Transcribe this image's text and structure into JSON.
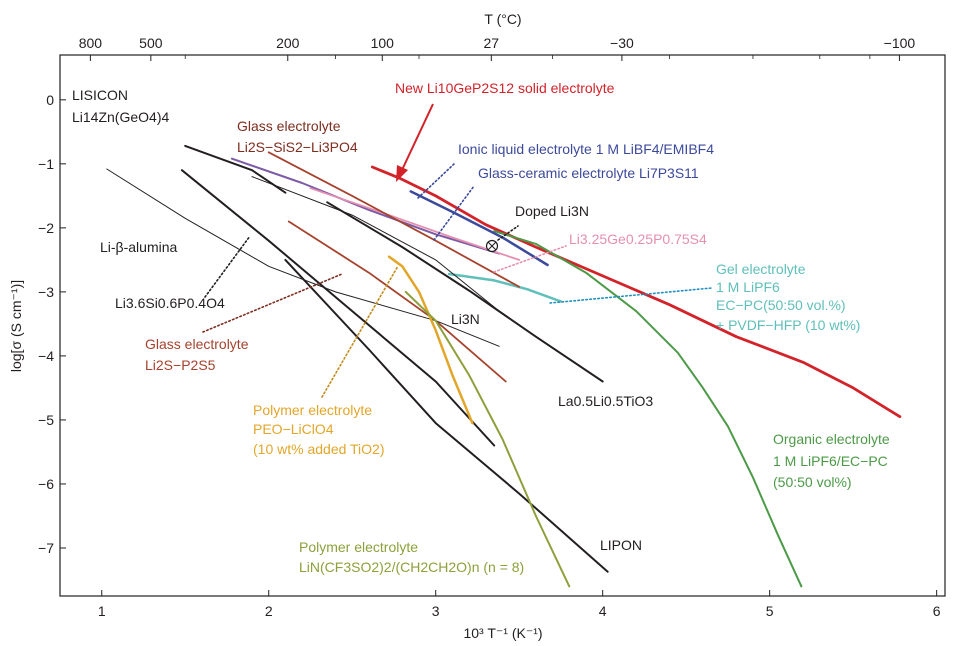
{
  "chart_data": {
    "type": "line",
    "xlabel": "10³ T⁻¹ (K⁻¹)",
    "ylabel": "log[σ (S cm⁻¹)]",
    "top_axis_label": "T (°C)",
    "xlim": [
      0.75,
      6.05
    ],
    "ylim": [
      -7.75,
      0.7
    ],
    "x_ticks": [
      1,
      2,
      3,
      4,
      5,
      6
    ],
    "y_ticks": [
      0,
      -1,
      -2,
      -3,
      -4,
      -5,
      -6,
      -7
    ],
    "y_tick_labels": [
      "0",
      "−1",
      "−2",
      "−3",
      "−4",
      "−5",
      "−6",
      "−7"
    ],
    "top_ticks": [
      {
        "label": "800",
        "x": 0.932
      },
      {
        "label": "500",
        "x": 1.294
      },
      {
        "label": "200",
        "x": 2.114
      },
      {
        "label": "100",
        "x": 2.68
      },
      {
        "label": "27",
        "x": 3.333
      },
      {
        "label": "−30",
        "x": 4.115
      },
      {
        "label": "−100",
        "x": 5.777
      }
    ],
    "top_minor_ticks": [
      1.5,
      2.4,
      2.9,
      3.7,
      4.4,
      4.9,
      5.3,
      5.6
    ],
    "grid": false,
    "series": [
      {
        "name": "New Li10GeP2S12 solid electrolyte",
        "color": "#d2232a",
        "width": 2.8,
        "x": [
          2.62,
          2.78,
          3.0,
          3.3,
          3.6,
          4.0,
          4.4,
          4.8,
          5.2,
          5.5,
          5.78
        ],
        "y": [
          -1.05,
          -1.22,
          -1.5,
          -1.95,
          -2.3,
          -2.75,
          -3.2,
          -3.7,
          -4.1,
          -4.5,
          -4.95
        ]
      },
      {
        "name": "Organic electrolyte 1 M LiPF6/EC−PC (50:50 vol%)",
        "color": "#4c9a47",
        "width": 2,
        "x": [
          3.35,
          3.6,
          3.9,
          4.2,
          4.45,
          4.6,
          4.75,
          4.9,
          5.05,
          5.19
        ],
        "y": [
          -2.05,
          -2.25,
          -2.7,
          -3.3,
          -3.95,
          -4.5,
          -5.1,
          -5.9,
          -6.8,
          -7.6
        ]
      },
      {
        "name": "Gel electrolyte 1 M LiPF6 EC−PC(50:50 vol.%) + PVDF−HFP (10 wt%)",
        "color": "#5fbfb9",
        "width": 2.5,
        "x": [
          3.08,
          3.35,
          3.55,
          3.75
        ],
        "y": [
          -2.72,
          -2.82,
          -2.96,
          -3.15
        ]
      },
      {
        "name": "Ionic liquid electrolyte 1 M LiBF4/EMIBF4",
        "color": "#3c4a9b",
        "width": 2.5,
        "x": [
          2.85,
          3.1,
          3.4,
          3.67
        ],
        "y": [
          -1.43,
          -1.75,
          -2.15,
          -2.58
        ]
      },
      {
        "name": "Glass-ceramic electrolyte Li7P3S11",
        "color": "#7b5aa6",
        "width": 2,
        "x": [
          1.78,
          2.2,
          2.6,
          3.0,
          3.38
        ],
        "y": [
          -0.92,
          -1.3,
          -1.72,
          -2.1,
          -2.4
        ]
      },
      {
        "name": "Li3.25Ge0.25P0.75S4",
        "color": "#e58fb0",
        "width": 1.8,
        "x": [
          2.25,
          2.7,
          3.1,
          3.5
        ],
        "y": [
          -1.38,
          -1.78,
          -2.15,
          -2.5
        ]
      },
      {
        "name": "Glass electrolyte Li2S−SiS2−Li3PO4",
        "color": "#a6432e",
        "width": 1.8,
        "x": [
          2.0,
          2.5,
          3.0,
          3.5
        ],
        "y": [
          -0.82,
          -1.5,
          -2.2,
          -2.92
        ]
      },
      {
        "name": "Glass electrolyte Li2S−P2S5",
        "color": "#a6432e",
        "width": 1.8,
        "x": [
          2.12,
          2.6,
          3.0,
          3.42
        ],
        "y": [
          -1.9,
          -2.7,
          -3.45,
          -4.4
        ]
      },
      {
        "name": "Li3N",
        "color": "#231f20",
        "width": 2,
        "x": [
          1.5,
          1.9,
          2.1
        ],
        "y": [
          -0.72,
          -1.1,
          -1.45
        ]
      },
      {
        "name": "Li3N",
        "color": "#231f20",
        "width": 2,
        "x": [
          1.48,
          2.0,
          2.5,
          3.0,
          3.35
        ],
        "y": [
          -1.1,
          -2.2,
          -3.3,
          -4.4,
          -5.4
        ]
      },
      {
        "name": "Li3N",
        "color": "#231f20",
        "width": 1,
        "x": [
          1.9,
          2.5,
          3.0,
          3.38
        ],
        "y": [
          -1.2,
          -1.8,
          -2.5,
          -3.3
        ]
      },
      {
        "name": "La0.5Li0.5TiO3",
        "color": "#231f20",
        "width": 2,
        "x": [
          2.35,
          2.8,
          3.2,
          3.6,
          4.0
        ],
        "y": [
          -1.6,
          -2.3,
          -2.98,
          -3.7,
          -4.4
        ]
      },
      {
        "name": "LIPON",
        "color": "#231f20",
        "width": 2,
        "x": [
          2.1,
          2.6,
          3.0,
          3.5,
          4.03
        ],
        "y": [
          -2.5,
          -3.9,
          -5.05,
          -6.15,
          -7.37
        ]
      },
      {
        "name": "Li-β-alumina",
        "color": "#231f20",
        "width": 1,
        "x": [
          1.03,
          1.5,
          2.0,
          2.4,
          3.0,
          3.38
        ],
        "y": [
          -1.08,
          -1.85,
          -2.6,
          -3.0,
          -3.45,
          -3.85
        ]
      },
      {
        "name": "Polymer electrolyte PEO−LiClO4 (10 wt% added TiO2)",
        "color": "#e2a62a",
        "width": 2.5,
        "x": [
          2.72,
          2.8,
          2.9,
          3.0,
          3.1,
          3.22
        ],
        "y": [
          -2.45,
          -2.6,
          -3.0,
          -3.6,
          -4.3,
          -5.05
        ]
      },
      {
        "name": "Polymer electrolyte LiN(CF3SO2)2/(CH2CH2O)n (n = 8)",
        "color": "#8da03c",
        "width": 2,
        "x": [
          2.82,
          3.0,
          3.2,
          3.4,
          3.6,
          3.8
        ],
        "y": [
          -3.0,
          -3.45,
          -4.3,
          -5.3,
          -6.5,
          -7.6
        ]
      }
    ]
  },
  "annotations": {
    "lisicon_line1": "LISICON",
    "lisicon_line2": "Li14Zn(GeO4)4",
    "glass1_line1": "Glass electrolyte",
    "glass1_line2": "Li2S−SiS2−Li3PO4",
    "lgps": "New Li10GeP2S12 solid electrolyte",
    "ionic": "Ionic liquid electrolyte 1 M LiBF4/EMIBF4",
    "glassceramic": "Glass-ceramic electrolyte Li7P3S11",
    "doped": "Doped Li3N",
    "li325": "Li3.25Ge0.25P0.75S4",
    "gel_line1": "Gel electrolyte",
    "gel_line2": "1 M LiPF6",
    "gel_line3": "EC−PC(50:50 vol.%)",
    "gel_line4": "+ PVDF−HFP (10 wt%)",
    "libeta": "Li-β-alumina",
    "li36": "Li3.6Si0.6P0.4O4",
    "glass2_line1": "Glass electrolyte",
    "glass2_line2": "Li2S−P2S5",
    "li3n": "Li3N",
    "llto": "La0.5Li0.5TiO3",
    "peo_line1": "Polymer electrolyte",
    "peo_line2": "PEO−LiClO4",
    "peo_line3": "(10 wt% added TiO2)",
    "organic_line1": "Organic electrolyte",
    "organic_line2": "1 M LiPF6/EC−PC",
    "organic_line3": "(50:50 vol%)",
    "polymer2_line1": "Polymer electrolyte",
    "polymer2_line2": "LiN(CF3SO2)2/(CH2CH2O)n (n = 8)",
    "lipon": "LIPON"
  },
  "colors": {
    "frame": "#231f20",
    "lgps": "#d2232a",
    "ionic": "#3c4a9b",
    "glassceramic": "#3c4a9b",
    "li325": "#e58fb0",
    "gel": "#5fbfb9",
    "glass": "#a6432e",
    "peo": "#e2a62a",
    "polymer2": "#8da03c",
    "organic": "#4c9a47",
    "black": "#231f20"
  }
}
